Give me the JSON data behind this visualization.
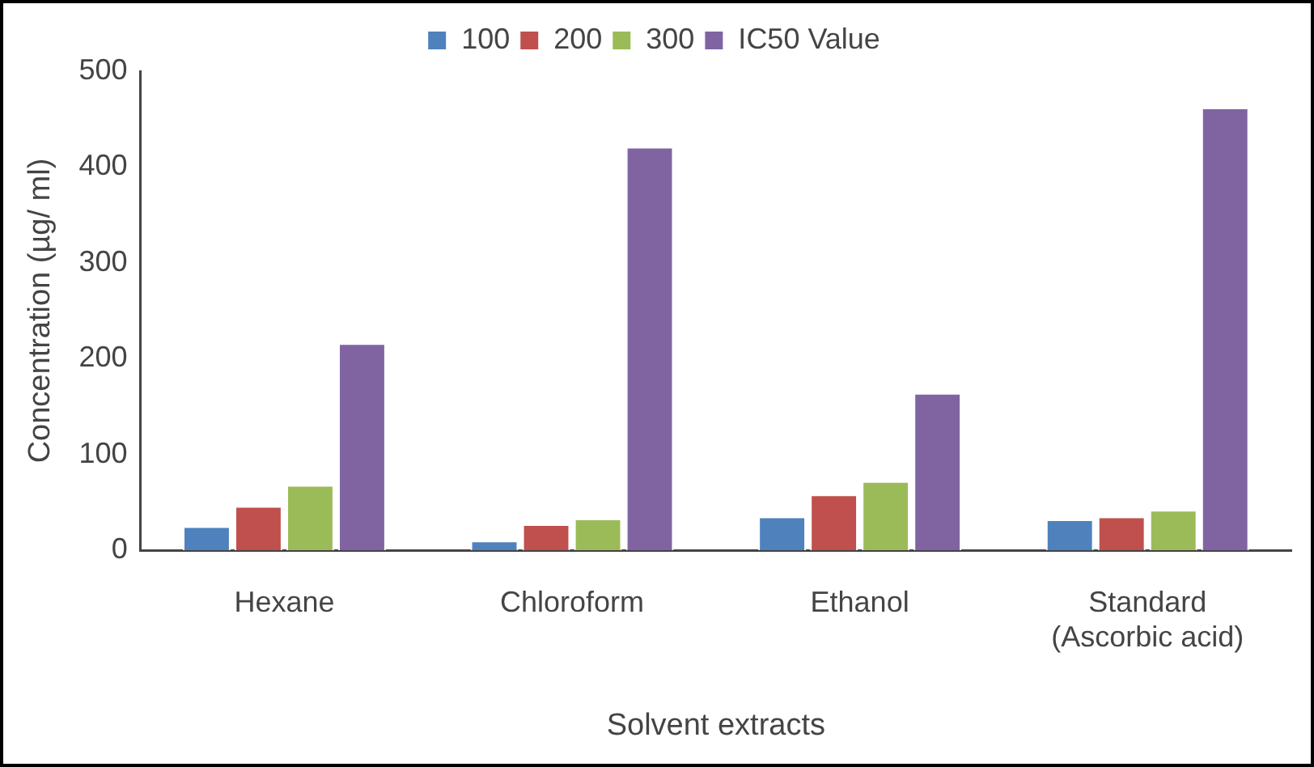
{
  "chart_data": {
    "type": "bar",
    "xlabel": "Solvent extracts",
    "ylabel": "Concentration (µg/ ml)",
    "categories": [
      "Hexane",
      "Chloroform",
      "Ethanol",
      "Standard (Ascorbic acid)"
    ],
    "series": [
      {
        "name": "100",
        "color": "#4f81bd",
        "values": [
          25,
          10,
          35,
          32
        ]
      },
      {
        "name": "200",
        "color": "#c0504d",
        "values": [
          46,
          27,
          58,
          35
        ]
      },
      {
        "name": "300",
        "color": "#9bbb59",
        "values": [
          68,
          33,
          72,
          42
        ]
      },
      {
        "name": "IC50 Value",
        "color": "#8064a2",
        "values": [
          216,
          421,
          164,
          462
        ]
      }
    ],
    "ylim": [
      0,
      500
    ],
    "yticks": [
      0,
      100,
      200,
      300,
      400,
      500
    ],
    "grid": false,
    "legend": "top"
  }
}
